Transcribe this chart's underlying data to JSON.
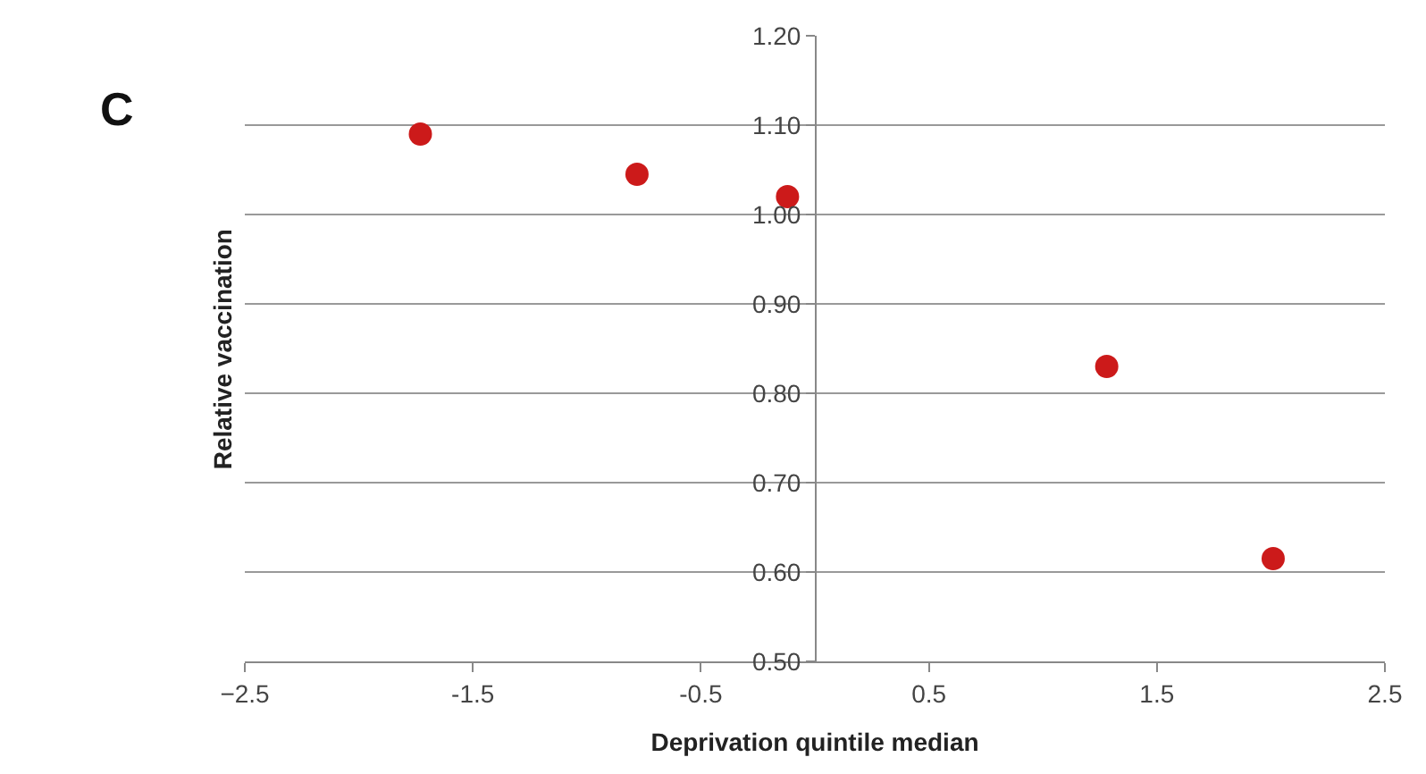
{
  "chart_data": {
    "type": "scatter",
    "x": [
      -1.73,
      -0.78,
      -0.12,
      1.28,
      2.01
    ],
    "values": [
      1.09,
      1.045,
      1.02,
      0.83,
      0.615
    ],
    "color": "#cc1a1a",
    "marker": "circle",
    "xlabel": "Deprivation quintile median",
    "ylabel": "Relative vaccination",
    "annotations": [
      "C"
    ],
    "xlim": [
      -2.5,
      2.5
    ],
    "xticks": [
      {
        "value": -2.5,
        "label": "−2.5"
      },
      -1.5,
      -0.5,
      0.5,
      1.5,
      2.5
    ],
    "ylim": [
      0.5,
      1.2
    ],
    "yticks": [
      {
        "value": 0.5,
        "label": "0.50"
      },
      {
        "value": 0.6,
        "label": "0.60"
      },
      {
        "value": 0.7,
        "label": "0.70"
      },
      {
        "value": 0.8,
        "label": "0.80"
      },
      {
        "value": 0.9,
        "label": "0.90"
      },
      {
        "value": 1.0,
        "label": "1.00"
      },
      {
        "value": 1.1,
        "label": "1.10"
      },
      {
        "value": 1.2,
        "label": "1.20"
      }
    ],
    "grid": "y",
    "legend": false
  }
}
